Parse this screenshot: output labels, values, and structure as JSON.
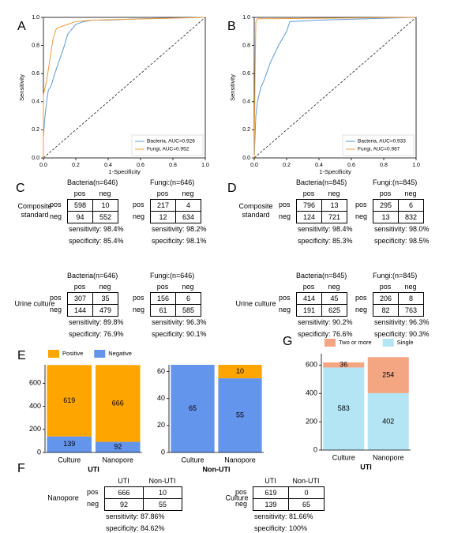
{
  "chart_data": [
    {
      "type": "line",
      "panel_label": "A",
      "xlabel": "1-Specificity",
      "ylabel": "Sensitivity",
      "xlim": [
        0,
        1
      ],
      "ylim": [
        0,
        1
      ],
      "xticks": [
        {
          "value": 0,
          "label": "0.0"
        },
        0.2,
        0.4,
        0.6,
        0.8,
        {
          "value": 1,
          "label": "1.0"
        }
      ],
      "yticks": [
        {
          "value": 0,
          "label": "0.0"
        },
        0.2,
        0.4,
        0.6,
        0.8,
        {
          "value": 1,
          "label": "1.0"
        }
      ],
      "legend": "lower right",
      "series": [
        {
          "name": "Bacteria, AUC=0.926",
          "color": "#5b9bd5",
          "x": [
            0,
            0,
            0.01,
            0.02,
            0.03,
            0.05,
            0.07,
            0.1,
            0.13,
            0.15,
            0.2,
            0.25,
            0.3,
            0.4,
            0.6,
            1
          ],
          "values": [
            0,
            0.15,
            0.3,
            0.4,
            0.48,
            0.52,
            0.6,
            0.7,
            0.8,
            0.88,
            0.95,
            0.97,
            0.98,
            0.98,
            0.99,
            1
          ]
        },
        {
          "name": "Fungi, AUC=0.952",
          "color": "#ed9b3b",
          "x": [
            0,
            0,
            0.02,
            0.04,
            0.06,
            0.08,
            0.1,
            0.15,
            0.2,
            0.3,
            1
          ],
          "values": [
            0,
            0.45,
            0.55,
            0.7,
            0.85,
            0.92,
            0.93,
            0.95,
            0.97,
            0.98,
            1
          ]
        }
      ]
    },
    {
      "type": "line",
      "panel_label": "B",
      "xlabel": "1-Specificity",
      "ylabel": "Sensitivity",
      "xlim": [
        0,
        1
      ],
      "ylim": [
        0,
        1
      ],
      "xticks": [
        {
          "value": 0,
          "label": "0.0"
        },
        0.2,
        0.4,
        0.6,
        0.8,
        {
          "value": 1,
          "label": "1.0"
        }
      ],
      "yticks": [
        {
          "value": 0,
          "label": "0.0"
        },
        0.2,
        0.4,
        0.6,
        0.8,
        {
          "value": 1,
          "label": "1.0"
        }
      ],
      "legend": "lower right",
      "series": [
        {
          "name": "Bacteria, AUC=0.933",
          "color": "#5b9bd5",
          "x": [
            0,
            0.005,
            0.01,
            0.02,
            0.04,
            0.06,
            0.1,
            0.15,
            0.2,
            0.22,
            0.4,
            1
          ],
          "values": [
            0,
            0.15,
            0.3,
            0.4,
            0.5,
            0.55,
            0.68,
            0.8,
            0.9,
            0.97,
            0.98,
            1
          ]
        },
        {
          "name": "Fungi, AUC=0.987",
          "color": "#ed9b3b",
          "x": [
            0,
            0.005,
            0.01,
            0.02,
            0.1,
            1
          ],
          "values": [
            0,
            0.6,
            0.97,
            0.99,
            0.99,
            1
          ]
        }
      ]
    },
    {
      "type": "stacked_bar",
      "panel_label": "E",
      "xlabel": "UTI",
      "categories": [
        "Culture",
        "Nanopore"
      ],
      "ylim": [
        0,
        760
      ],
      "yticks": [
        0,
        200,
        400,
        600
      ],
      "legend": "top",
      "series": [
        {
          "name": "Positive",
          "color": "#ffa500",
          "values": [
            619,
            666
          ]
        },
        {
          "name": "Negative",
          "color": "#6495ed",
          "values": [
            139,
            92
          ]
        }
      ]
    },
    {
      "type": "stacked_bar",
      "xlabel": "Non-UTI",
      "categories": [
        "Culture",
        "Nanopore"
      ],
      "ylim": [
        0,
        65
      ],
      "yticks": [
        0,
        20,
        40,
        60
      ],
      "series": [
        {
          "color": "#ffa500",
          "values": [
            0,
            10
          ]
        },
        {
          "color": "#6495ed",
          "values": [
            65,
            55
          ]
        }
      ]
    },
    {
      "type": "stacked_bar",
      "panel_label": "G",
      "xlabel": "UTI",
      "categories": [
        "Culture",
        "Nanopore"
      ],
      "ylim": [
        0,
        680
      ],
      "yticks": [
        0,
        200,
        400,
        600
      ],
      "legend": "top",
      "series": [
        {
          "name": "Two or more",
          "color": "#f4a582",
          "values": [
            36,
            254
          ]
        },
        {
          "name": "Single",
          "color": "#b3e5f5",
          "values": [
            583,
            402
          ]
        }
      ]
    }
  ],
  "tables": [
    {
      "panel_label": "C",
      "groups": [
        {
          "label": "Composite standard",
          "tables": [
            {
              "title": "Bacteria(n=646)",
              "columns": [
                "pos",
                "neg"
              ],
              "rows": [
                {
                  "label": "pos",
                  "cells": [
                    598,
                    10
                  ]
                },
                {
                  "label": "neg",
                  "cells": [
                    94,
                    552
                  ]
                }
              ],
              "notes": [
                "sensitivity: 98.4%",
                "specificity: 85.4%"
              ]
            },
            {
              "title": "Fungi:(n=646)",
              "columns": [
                "pos",
                "neg"
              ],
              "rows": [
                {
                  "label": "pos",
                  "cells": [
                    217,
                    4
                  ]
                },
                {
                  "label": "neg",
                  "cells": [
                    12,
                    634
                  ]
                }
              ],
              "notes": [
                "sensitivity: 98.2%",
                "specificity: 98.1%"
              ]
            }
          ]
        },
        {
          "label": "Urine culture",
          "tables": [
            {
              "title": "Bacteria(n=646)",
              "columns": [
                "pos",
                "neg"
              ],
              "rows": [
                {
                  "label": "pos",
                  "cells": [
                    307,
                    35
                  ]
                },
                {
                  "label": "neg",
                  "cells": [
                    144,
                    479
                  ]
                }
              ],
              "notes": [
                "sensitivity: 89.8%",
                "specificity: 76.9%"
              ]
            },
            {
              "title": "Fungi:(n=646)",
              "columns": [
                "pos",
                "neg"
              ],
              "rows": [
                {
                  "label": "pos",
                  "cells": [
                    156,
                    6
                  ]
                },
                {
                  "label": "neg",
                  "cells": [
                    61,
                    585
                  ]
                }
              ],
              "notes": [
                "sensitivity: 96.3%",
                "specificity: 90.1%"
              ]
            }
          ]
        }
      ]
    },
    {
      "panel_label": "D",
      "groups": [
        {
          "label": "Composite standard",
          "tables": [
            {
              "title": "Bacteria(n=845)",
              "columns": [
                "pos",
                "neg"
              ],
              "rows": [
                {
                  "label": "pos",
                  "cells": [
                    796,
                    13
                  ]
                },
                {
                  "label": "neg",
                  "cells": [
                    124,
                    721
                  ]
                }
              ],
              "notes": [
                "sensitivity: 98.4%",
                "specificity: 85.3%"
              ]
            },
            {
              "title": "Fungi:(n=845)",
              "columns": [
                "pos",
                "neg"
              ],
              "rows": [
                {
                  "label": "pos",
                  "cells": [
                    295,
                    6
                  ]
                },
                {
                  "label": "neg",
                  "cells": [
                    13,
                    832
                  ]
                }
              ],
              "notes": [
                "sensitivity: 98.0%",
                "specificity: 98.5%"
              ]
            }
          ]
        },
        {
          "label": "Urine culture",
          "tables": [
            {
              "title": "Bacteria(n=845)",
              "columns": [
                "pos",
                "neg"
              ],
              "rows": [
                {
                  "label": "pos",
                  "cells": [
                    414,
                    45
                  ]
                },
                {
                  "label": "neg",
                  "cells": [
                    191,
                    625
                  ]
                }
              ],
              "notes": [
                "sensitivity: 90.2%",
                "specificity: 76.6%"
              ]
            },
            {
              "title": "Fungi:(n=845)",
              "columns": [
                "pos",
                "neg"
              ],
              "rows": [
                {
                  "label": "pos",
                  "cells": [
                    206,
                    8
                  ]
                },
                {
                  "label": "neg",
                  "cells": [
                    82,
                    763
                  ]
                }
              ],
              "notes": [
                "sensitivity: 96.3%",
                "specificity: 90.3%"
              ]
            }
          ]
        }
      ]
    },
    {
      "panel_label": "F",
      "groups": [
        {
          "label": "Nanopore",
          "tables": [
            {
              "columns": [
                "UTI",
                "Non-UTI"
              ],
              "rows": [
                {
                  "label": "pos",
                  "cells": [
                    666,
                    10
                  ]
                },
                {
                  "label": "neg",
                  "cells": [
                    92,
                    55
                  ]
                }
              ],
              "notes": [
                "sensitivity: 87.86%",
                "specificity: 84.62%"
              ]
            }
          ]
        },
        {
          "label": "Culture",
          "tables": [
            {
              "columns": [
                "UTI",
                "Non-UTI"
              ],
              "rows": [
                {
                  "label": "pos",
                  "cells": [
                    619,
                    0
                  ]
                },
                {
                  "label": "neg",
                  "cells": [
                    139,
                    65
                  ]
                }
              ],
              "notes": [
                "sensitivity: 81.66%",
                "specificity: 100%"
              ]
            }
          ]
        }
      ]
    }
  ]
}
